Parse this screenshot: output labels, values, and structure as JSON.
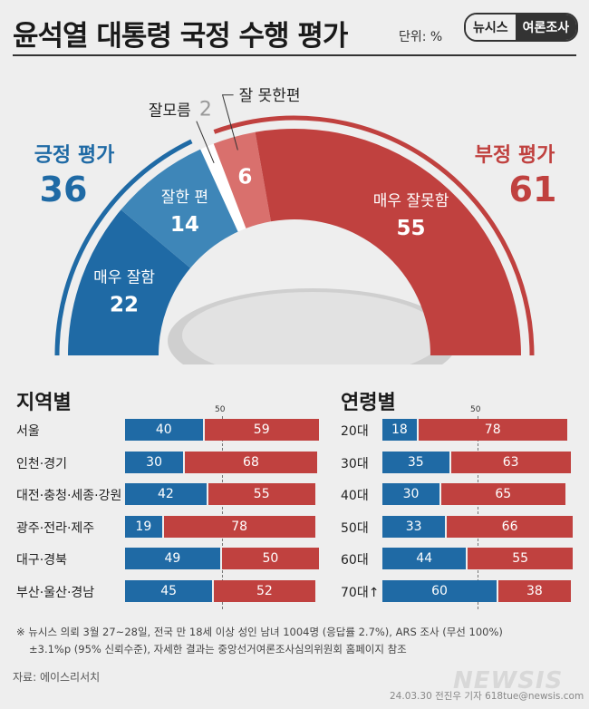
{
  "header": {
    "title": "윤석열 대통령 국정 수행 평가",
    "unit": "단위: %",
    "brand_left": "뉴시스",
    "brand_right": "여론조사"
  },
  "colors": {
    "positive": "#1f6aa5",
    "positive_light": "#3e86b8",
    "negative": "#c0413f",
    "negative_light": "#d9706d",
    "gray": "#d4d4d4"
  },
  "chart_data": [
    {
      "type": "pie",
      "title": "윤석열 대통령 국정 수행 평가",
      "groups": [
        {
          "name": "긍정 평가",
          "value": 36
        },
        {
          "name": "부정 평가",
          "value": 61
        }
      ],
      "segments": [
        {
          "label": "매우 잘함",
          "value": 22
        },
        {
          "label": "잘한 편",
          "value": 14
        },
        {
          "label": "잘모름",
          "value": 2
        },
        {
          "label": "잘 못한편",
          "value": 6
        },
        {
          "label": "매우 잘못함",
          "value": 55
        }
      ]
    },
    {
      "type": "bar",
      "title": "지역별",
      "reference_line": 50,
      "categories": [
        "서울",
        "인천·경기",
        "대전·충청·세종·강원",
        "광주·전라·제주",
        "대구·경북",
        "부산·울산·경남"
      ],
      "series": [
        {
          "values": [
            40,
            30,
            42,
            19,
            49,
            45
          ]
        },
        {
          "values": [
            59,
            68,
            55,
            78,
            50,
            52
          ]
        }
      ]
    },
    {
      "type": "bar",
      "title": "연령별",
      "reference_line": 50,
      "categories": [
        "20대",
        "30대",
        "40대",
        "50대",
        "60대",
        "70대↑"
      ],
      "series": [
        {
          "values": [
            18,
            35,
            30,
            33,
            44,
            60
          ]
        },
        {
          "values": [
            78,
            63,
            65,
            66,
            55,
            38
          ]
        }
      ]
    }
  ],
  "footnote": {
    "line1": "※ 뉴시스 의뢰 3월 27~28일, 전국 만 18세 이상 성인 남녀 1004명 (응답률 2.7%), ARS 조사 (무선 100%)",
    "line2": "±3.1%p (95% 신뢰수준), 자세한 결과는 중앙선거여론조사심의위원회 홈페이지 참조"
  },
  "source": "자료: 에이스리서치",
  "credit": "24.03.30 전진우 기자 618tue@newsis.com",
  "watermark": "NEWSIS"
}
